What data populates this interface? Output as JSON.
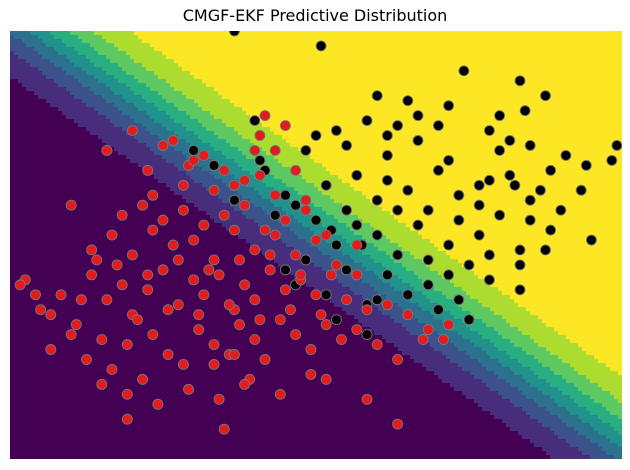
{
  "chart_data": {
    "type": "scatter",
    "title": "CMGF-EKF Predictive Distribution",
    "xlabel": "",
    "ylabel": "",
    "xlim": [
      -2.7,
      3.3
    ],
    "ylim": [
      -2.2,
      2.1
    ],
    "axes_visible": false,
    "background": {
      "kind": "filled-contour",
      "colormap": "viridis",
      "boundary": {
        "slope": -0.72,
        "intercept": 0.35
      },
      "sharpness": 3.2,
      "colors": [
        "#440154",
        "#472d7b",
        "#3b528b",
        "#2c728e",
        "#21918c",
        "#28ae80",
        "#5ec962",
        "#addc30",
        "#fde725"
      ]
    },
    "series": [
      {
        "marker_color": "#000000",
        "edge_color": "#777777",
        "x": [
          -0.5,
          0.35,
          1.75,
          0.9,
          1.2,
          2.3,
          2.55,
          2.35,
          -0.25,
          0.5,
          0.8,
          1.1,
          1.3,
          1.6,
          2.0,
          2.2,
          2.1,
          2.4,
          2.6,
          2.75,
          2.95,
          3.2,
          3.25,
          2.5,
          2.0,
          1.5,
          1.0,
          0.2,
          -0.2,
          0.0,
          0.4,
          0.6,
          0.9,
          1.2,
          1.4,
          1.7,
          1.9,
          2.1,
          2.25,
          2.4,
          2.6,
          2.9,
          2.55,
          2.3,
          1.9,
          1.6,
          1.3,
          1.1,
          0.9,
          0.7,
          0.5,
          0.3,
          0.1,
          -0.1,
          0.2,
          0.6,
          1.0,
          1.4,
          1.8,
          2.0,
          2.3,
          1.7,
          1.5,
          1.2,
          0.8,
          0.4,
          0.0,
          -0.4,
          -0.7,
          -0.9,
          1.3,
          1.6,
          2.2,
          1.9,
          1.0,
          0.7,
          2.0,
          1.7,
          1.4,
          1.1,
          0.5,
          0.8,
          1.0,
          1.5,
          2.1,
          2.4,
          2.7,
          3.0,
          1.8,
          1.2,
          0.6,
          0.3,
          -0.3,
          -0.5,
          0.1,
          0.9,
          1.6,
          2.3,
          0.45,
          0.75
        ],
        "y": [
          2.1,
          1.95,
          1.7,
          1.45,
          1.4,
          1.6,
          1.45,
          1.3,
          0.8,
          1.1,
          1.2,
          1.15,
          1.25,
          1.35,
          1.1,
          1.0,
          0.9,
          0.95,
          0.7,
          0.85,
          0.75,
          0.8,
          0.95,
          0.5,
          0.6,
          0.7,
          0.85,
          0.9,
          0.7,
          0.45,
          0.55,
          0.3,
          0.4,
          0.5,
          0.3,
          0.45,
          0.35,
          0.25,
          0.55,
          0.2,
          0.1,
          0.5,
          -0.1,
          -0.25,
          0.05,
          -0.05,
          0.15,
          -0.15,
          0.05,
          0.15,
          -0.05,
          0.2,
          0.35,
          0.25,
          -0.2,
          -0.3,
          -0.35,
          -0.45,
          -0.25,
          -0.4,
          -0.5,
          -0.6,
          -0.7,
          -0.55,
          -0.65,
          -0.55,
          -0.3,
          0.6,
          0.75,
          0.9,
          1.0,
          0.8,
          0.65,
          0.55,
          0.6,
          0.65,
          -0.15,
          0.2,
          -0.2,
          0.3,
          -0.8,
          -0.95,
          1.05,
          1.15,
          1.25,
          0.4,
          0.3,
          0.0,
          -0.8,
          -0.75,
          0.95,
          1.05,
          1.2,
          0.4,
          -0.45,
          -0.6,
          -0.35,
          -0.1,
          0.1,
          -0.05
        ]
      },
      {
        "marker_color": "#e41a1c",
        "edge_color": "#777777",
        "x": [
          -2.55,
          -2.4,
          -2.2,
          -2.05,
          -1.9,
          -1.75,
          -1.6,
          -1.5,
          -1.35,
          -1.2,
          -1.05,
          -0.9,
          -0.8,
          -0.65,
          -0.5,
          -0.4,
          -0.3,
          -0.15,
          0.0,
          0.15,
          0.3,
          0.45,
          0.6,
          0.8,
          1.0,
          1.2,
          1.4,
          1.6,
          -2.3,
          -2.1,
          -1.95,
          -1.8,
          -1.7,
          -1.55,
          -1.4,
          -1.3,
          -1.15,
          -1.0,
          -0.85,
          -0.7,
          -0.55,
          -0.45,
          -0.3,
          -0.2,
          -0.05,
          0.1,
          0.25,
          0.4,
          0.55,
          0.7,
          0.9,
          1.1,
          -1.9,
          -1.7,
          -1.5,
          -1.3,
          -1.1,
          -0.9,
          -0.7,
          -0.5,
          -0.3,
          -0.1,
          0.1,
          0.3,
          0.5,
          0.7,
          -1.6,
          -1.4,
          -1.2,
          -1.0,
          -0.8,
          -0.6,
          -0.4,
          -0.2,
          0.0,
          0.2,
          0.4,
          -1.8,
          -1.55,
          -1.25,
          -0.95,
          -0.65,
          -0.35,
          -0.05,
          0.25,
          -2.0,
          -1.65,
          -1.35,
          -1.05,
          -0.75,
          -0.45,
          -0.15,
          0.15,
          -1.45,
          -1.15,
          -0.85,
          -0.55,
          -0.25,
          0.05,
          0.35,
          -1.0,
          -0.7,
          -0.4,
          -0.1,
          0.2,
          -0.95,
          -0.6,
          -0.25,
          -1.3,
          -0.9,
          -0.5,
          -0.3,
          0.1,
          -1.75,
          -1.5,
          -1.1,
          -0.8,
          -0.2,
          -0.6,
          0.4,
          -0.4,
          0.8,
          -2.1,
          -1.85,
          -2.3,
          -0.7,
          -1.55,
          -2.45,
          -2.6,
          0.7,
          -0.5,
          1.1,
          -1.2,
          1.35,
          1.55,
          -1.35,
          -0.1,
          -0.25,
          0.0
        ],
        "y": [
          -0.4,
          -0.7,
          -0.55,
          -0.85,
          -0.35,
          -0.6,
          -0.45,
          -0.75,
          -0.5,
          -0.3,
          -0.65,
          -0.4,
          -0.55,
          -0.35,
          -0.7,
          -0.45,
          -0.6,
          -0.3,
          -0.5,
          -0.4,
          -0.55,
          -0.35,
          -0.6,
          -0.7,
          -0.65,
          -0.75,
          -0.9,
          -0.85,
          -1.1,
          -0.95,
          -1.2,
          -1.0,
          -1.3,
          -1.05,
          -1.4,
          -0.95,
          -1.15,
          -1.25,
          -0.9,
          -1.05,
          -1.15,
          -0.85,
          -1.0,
          -1.2,
          -0.8,
          -0.95,
          -1.1,
          -0.85,
          -1.0,
          -0.9,
          -1.05,
          -1.2,
          -0.1,
          0.05,
          -0.15,
          0.1,
          -0.05,
          0.0,
          -0.2,
          0.1,
          -0.1,
          0.05,
          -0.15,
          0.0,
          -0.25,
          -0.05,
          0.25,
          0.35,
          0.2,
          0.3,
          0.15,
          0.25,
          0.35,
          0.1,
          0.2,
          0.3,
          0.05,
          -1.45,
          -1.55,
          -1.65,
          -1.5,
          -1.6,
          -1.4,
          -1.55,
          -1.35,
          -0.6,
          -0.25,
          -0.35,
          -0.2,
          -0.3,
          -0.2,
          -0.15,
          -0.35,
          -0.8,
          -0.7,
          -0.75,
          -0.65,
          -0.8,
          -0.7,
          -0.75,
          0.55,
          0.5,
          0.6,
          0.45,
          0.4,
          0.75,
          0.7,
          0.65,
          0.45,
          0.8,
          0.55,
          0.9,
          0.7,
          0.9,
          1.1,
          1.0,
          0.85,
          1.25,
          -1.9,
          -1.4,
          -1.45,
          -1.6,
          0.35,
          -0.2,
          -0.75,
          -1.25,
          -1.8,
          -0.55,
          -0.45,
          -0.35,
          -1.15,
          -1.85,
          0.95,
          -1.0,
          -1.0,
          0.7,
          0.9,
          1.05,
          1.15
        ]
      }
    ]
  }
}
